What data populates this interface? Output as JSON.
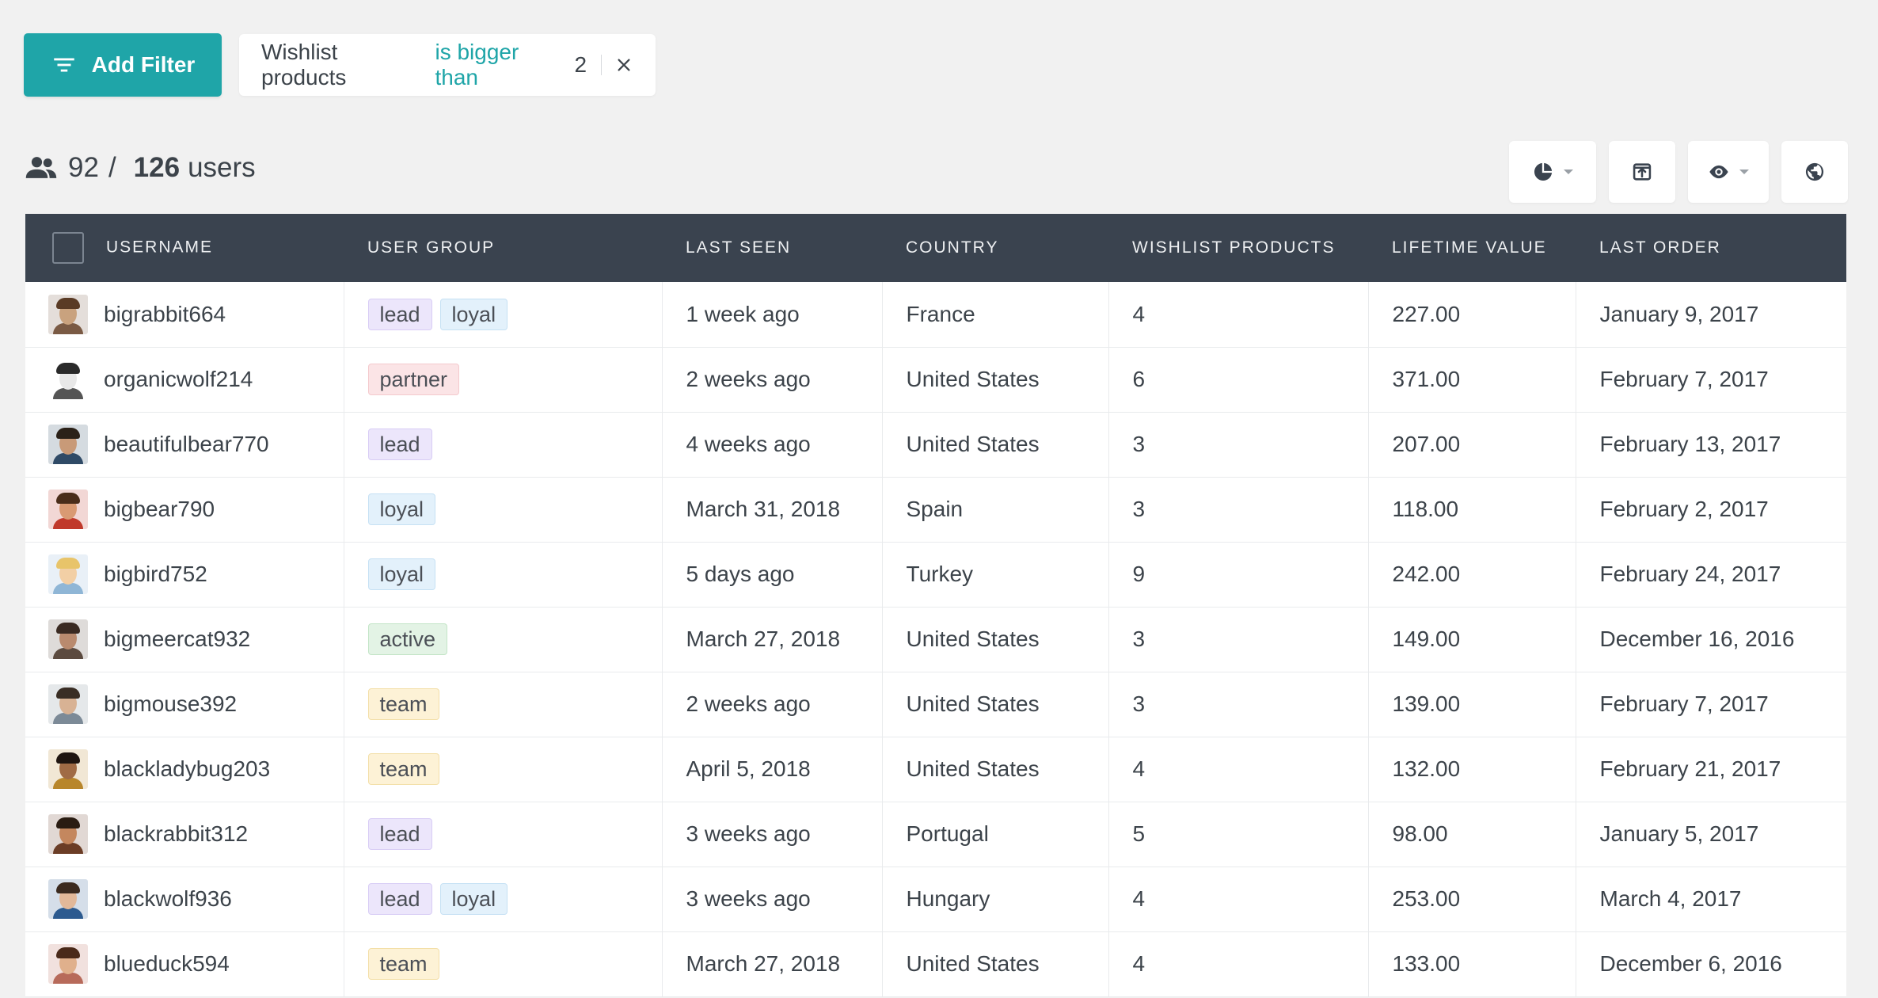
{
  "filter_bar": {
    "add_filter_label": "Add Filter",
    "active_filter": {
      "field": "Wishlist products",
      "operator": "is bigger than",
      "value": "2"
    }
  },
  "summary": {
    "shown": "92",
    "total": "126",
    "unit": "users"
  },
  "toolbar": {
    "buttons": [
      "chart-pie-icon",
      "export-icon",
      "eye-icon",
      "globe-icon"
    ]
  },
  "table": {
    "columns": [
      "USERNAME",
      "USER GROUP",
      "LAST SEEN",
      "COUNTRY",
      "WISHLIST PRODUCTS",
      "LIFETIME VALUE",
      "LAST ORDER"
    ],
    "rows": [
      {
        "username": "bigrabbit664",
        "groups": [
          "lead",
          "loyal"
        ],
        "last_seen": "1 week ago",
        "country": "France",
        "wishlist": "4",
        "ltv": "227.00",
        "last_order": "January 9, 2017"
      },
      {
        "username": "organicwolf214",
        "groups": [
          "partner"
        ],
        "last_seen": "2 weeks ago",
        "country": "United States",
        "wishlist": "6",
        "ltv": "371.00",
        "last_order": "February 7, 2017"
      },
      {
        "username": "beautifulbear770",
        "groups": [
          "lead"
        ],
        "last_seen": "4 weeks ago",
        "country": "United States",
        "wishlist": "3",
        "ltv": "207.00",
        "last_order": "February 13, 2017"
      },
      {
        "username": "bigbear790",
        "groups": [
          "loyal"
        ],
        "last_seen": "March 31, 2018",
        "country": "Spain",
        "wishlist": "3",
        "ltv": "118.00",
        "last_order": "February 2, 2017"
      },
      {
        "username": "bigbird752",
        "groups": [
          "loyal"
        ],
        "last_seen": "5 days ago",
        "country": "Turkey",
        "wishlist": "9",
        "ltv": "242.00",
        "last_order": "February 24, 2017"
      },
      {
        "username": "bigmeercat932",
        "groups": [
          "active"
        ],
        "last_seen": "March 27, 2018",
        "country": "United States",
        "wishlist": "3",
        "ltv": "149.00",
        "last_order": "December 16, 2016"
      },
      {
        "username": "bigmouse392",
        "groups": [
          "team"
        ],
        "last_seen": "2 weeks ago",
        "country": "United States",
        "wishlist": "3",
        "ltv": "139.00",
        "last_order": "February 7, 2017"
      },
      {
        "username": "blackladybug203",
        "groups": [
          "team"
        ],
        "last_seen": "April 5, 2018",
        "country": "United States",
        "wishlist": "4",
        "ltv": "132.00",
        "last_order": "February 21, 2017"
      },
      {
        "username": "blackrabbit312",
        "groups": [
          "lead"
        ],
        "last_seen": "3 weeks ago",
        "country": "Portugal",
        "wishlist": "5",
        "ltv": "98.00",
        "last_order": "January 5, 2017"
      },
      {
        "username": "blackwolf936",
        "groups": [
          "lead",
          "loyal"
        ],
        "last_seen": "3 weeks ago",
        "country": "Hungary",
        "wishlist": "4",
        "ltv": "253.00",
        "last_order": "March 4, 2017"
      },
      {
        "username": "blueduck594",
        "groups": [
          "team"
        ],
        "last_seen": "March 27, 2018",
        "country": "United States",
        "wishlist": "4",
        "ltv": "133.00",
        "last_order": "December 6, 2016"
      }
    ]
  },
  "colors": {
    "accent": "#1fa5a8",
    "table_header_bg": "#3a434f"
  }
}
